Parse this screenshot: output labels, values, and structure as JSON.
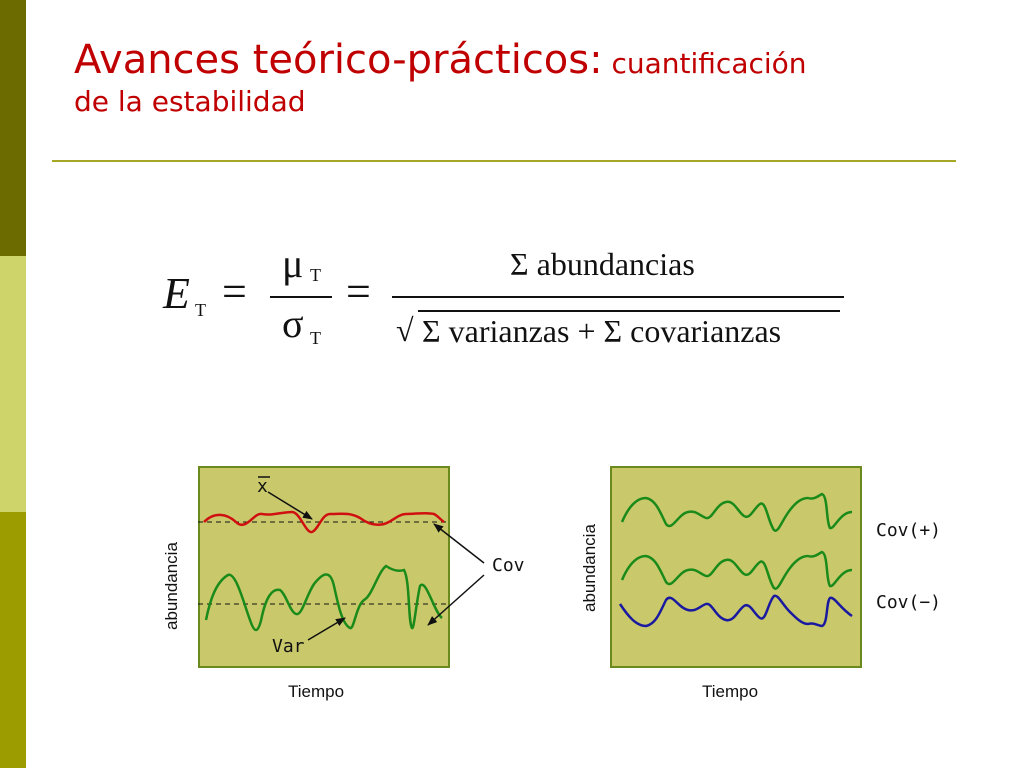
{
  "slide": {
    "title_main": "Avances teórico-prácticos:",
    "title_sub_1": " cuantificación",
    "title_sub_2": "de la estabilidad"
  },
  "formula": {
    "lhs_symbol": "E",
    "subscript": "T",
    "equals": "=",
    "mu": "μ",
    "sigma": "σ",
    "numerator": "Σ abundancias",
    "denominator": "Σ varianzas + Σ covarianzas",
    "sqrt": "√"
  },
  "left_panel": {
    "y_label": "abundancia",
    "x_label": "Tiempo",
    "mean_label": "x",
    "var_label": "Var",
    "cov_label": "Cov",
    "colors": {
      "mean_series": "#d01010",
      "var_series": "#1a8a1a"
    }
  },
  "right_panel": {
    "y_label": "abundancia",
    "x_label": "Tiempo",
    "cov_pos_label": "Cov(+)",
    "cov_neg_label": "Cov(−)",
    "colors": {
      "green_series": "#1a8a1a",
      "blue_series": "#1a1aa0"
    }
  },
  "theme": {
    "title_color": "#c00000",
    "panel_fill": "#c9c96b",
    "panel_border": "#6b8a1e",
    "rule_color": "#a7a726"
  }
}
